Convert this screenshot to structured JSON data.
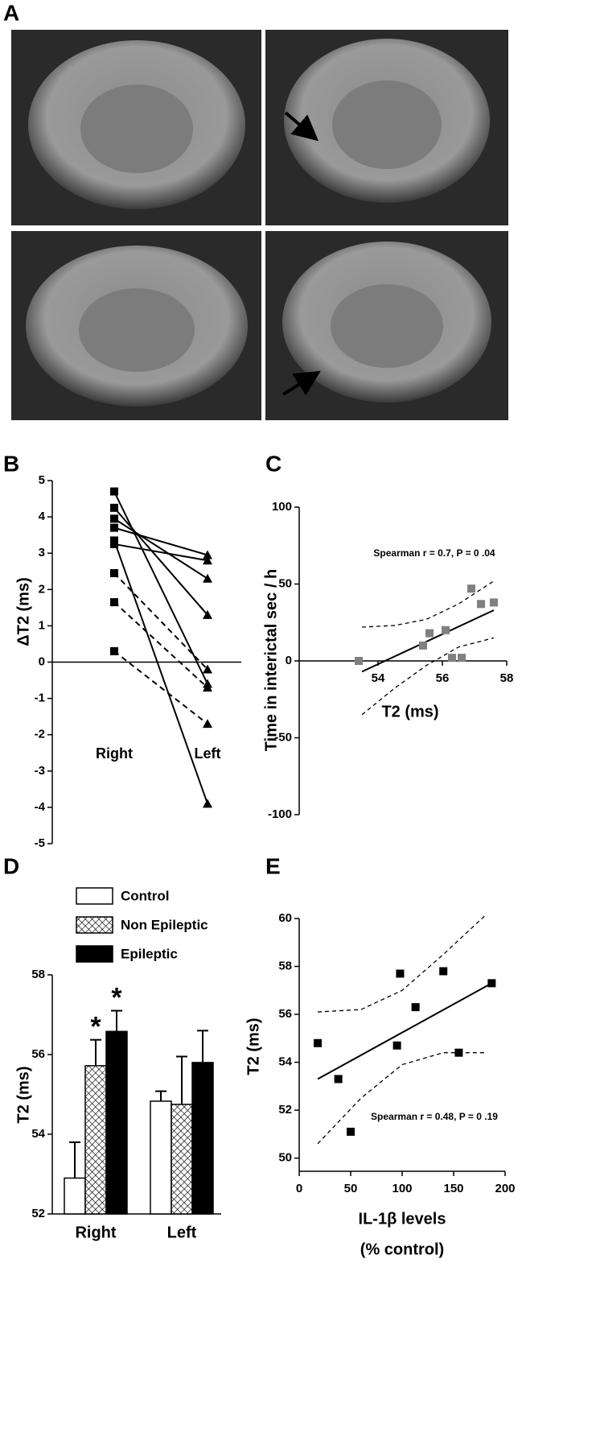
{
  "images": {
    "label": "A"
  },
  "chart_data": [
    {
      "type": "line",
      "label": "B",
      "ylabel": "ΔT2 (ms)",
      "categories": [
        "Right",
        "Left"
      ],
      "markers": [
        "square",
        "triangle"
      ],
      "ylim": [
        -5,
        5
      ],
      "yticks": [
        -5,
        -4,
        -3,
        -2,
        -1,
        0,
        1,
        2,
        3,
        4,
        5
      ],
      "zero_line": true,
      "series": [
        {
          "values": [
            4.7,
            -0.6
          ],
          "dashed": false
        },
        {
          "values": [
            4.25,
            1.3
          ],
          "dashed": false
        },
        {
          "values": [
            3.95,
            2.3
          ],
          "dashed": false
        },
        {
          "values": [
            3.7,
            2.95
          ],
          "dashed": false
        },
        {
          "values": [
            3.25,
            2.8
          ],
          "dashed": false
        },
        {
          "values": [
            3.35,
            -3.9
          ],
          "dashed": false
        },
        {
          "values": [
            2.45,
            -0.2
          ],
          "dashed": true
        },
        {
          "values": [
            1.65,
            -0.7
          ],
          "dashed": true
        },
        {
          "values": [
            0.3,
            -1.7
          ],
          "dashed": true
        }
      ]
    },
    {
      "type": "scatter",
      "label": "C",
      "xlabel": "T2 (ms)",
      "ylabel": "Time in interictal sec / h",
      "annotation": "Spearman r = 0.7, P = 0 .04",
      "color": "#808080",
      "xlim": [
        51.55,
        58
      ],
      "xticks": [
        54,
        56,
        58
      ],
      "ylim": [
        -100,
        100
      ],
      "yticks": [
        -100,
        -50,
        0,
        50,
        100
      ],
      "x": [
        53.4,
        55.4,
        55.6,
        56.1,
        56.3,
        56.6,
        56.9,
        57.2,
        57.6
      ],
      "y": [
        0,
        10,
        18,
        20,
        2,
        2,
        47,
        37,
        38
      ],
      "fit": {
        "x": [
          53.5,
          57.6
        ],
        "y": [
          -7,
          33
        ]
      },
      "ci_upper": {
        "x": [
          53.5,
          54.5,
          55.5,
          56.5,
          57.6
        ],
        "y": [
          22,
          23,
          27,
          37,
          52
        ]
      },
      "ci_lower": {
        "x": [
          53.5,
          54.5,
          55.5,
          56.5,
          57.6
        ],
        "y": [
          -35,
          -18,
          -3,
          9,
          15
        ]
      }
    },
    {
      "type": "bar",
      "label": "D",
      "ylabel": "T2 (ms)",
      "categories": [
        "Right",
        "Left"
      ],
      "ylim": [
        52,
        58
      ],
      "yticks": [
        52,
        54,
        56,
        58
      ],
      "series": [
        {
          "name": "Control",
          "fill": "white",
          "values": [
            52.9,
            54.83
          ],
          "errors": [
            0.9,
            0.25
          ]
        },
        {
          "name": "Non Epileptic",
          "fill": "crosshatch",
          "values": [
            55.72,
            54.75
          ],
          "errors": [
            0.65,
            1.2
          ]
        },
        {
          "name": "Epileptic",
          "fill": "black",
          "values": [
            56.58,
            55.8
          ],
          "errors": [
            0.52,
            0.8
          ]
        }
      ],
      "annotations": [
        {
          "text": "*"
        },
        {
          "text": "*"
        }
      ]
    },
    {
      "type": "scatter",
      "label": "E",
      "xlabel": [
        "IL-1β levels",
        "(% control)"
      ],
      "ylabel": "T2 (ms)",
      "annotation": "Spearman r = 0.48, P = 0 .19",
      "color": "#000000",
      "xlim": [
        0,
        200
      ],
      "xticks": [
        0,
        50,
        100,
        150,
        200
      ],
      "ylim": [
        49.45,
        60
      ],
      "yticks": [
        50,
        52,
        54,
        56,
        58,
        60
      ],
      "x": [
        18,
        38,
        50,
        95,
        98,
        113,
        140,
        155,
        187
      ],
      "y": [
        54.8,
        53.3,
        51.1,
        54.7,
        57.7,
        56.3,
        57.8,
        54.4,
        57.3
      ],
      "fit": {
        "x": [
          18,
          187
        ],
        "y": [
          53.3,
          57.3
        ]
      },
      "ci_upper": {
        "x": [
          18,
          60,
          100,
          140,
          180
        ],
        "y": [
          56.1,
          56.2,
          57,
          58.5,
          60.1
        ]
      },
      "ci_lower": {
        "x": [
          18,
          60,
          100,
          140,
          180
        ],
        "y": [
          50.6,
          52.5,
          53.9,
          54.4,
          54.4
        ]
      }
    }
  ]
}
